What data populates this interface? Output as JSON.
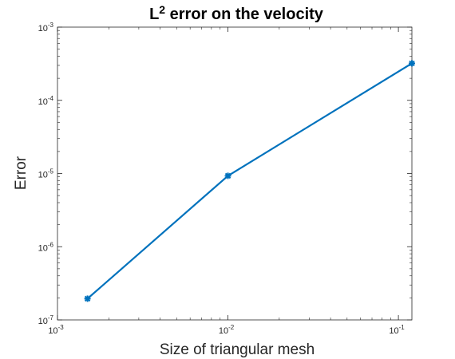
{
  "chart_data": {
    "type": "line",
    "title": "L",
    "title_superscript": "2",
    "title_rest": " error on the velocity",
    "xlabel": "Size of triangular mesh",
    "ylabel": "Error",
    "xscale": "log",
    "yscale": "log",
    "xlim": [
      0.001,
      0.12
    ],
    "ylim": [
      1e-07,
      0.001
    ],
    "grid": false,
    "box": true,
    "x_ticks": [
      {
        "value": 0.001,
        "base": "10",
        "exp": "-3"
      },
      {
        "value": 0.01,
        "base": "10",
        "exp": "-2"
      },
      {
        "value": 0.1,
        "base": "10",
        "exp": "-1"
      }
    ],
    "y_ticks": [
      {
        "value": 1e-07,
        "base": "10",
        "exp": "-7"
      },
      {
        "value": 1e-06,
        "base": "10",
        "exp": "-6"
      },
      {
        "value": 1e-05,
        "base": "10",
        "exp": "-5"
      },
      {
        "value": 0.0001,
        "base": "10",
        "exp": "-4"
      },
      {
        "value": 0.001,
        "base": "10",
        "exp": "-3"
      }
    ],
    "series": [
      {
        "color": "#0072bd",
        "marker": "asterisk",
        "x": [
          0.0015,
          0.01,
          0.12
        ],
        "y": [
          1.95e-07,
          9.3e-06,
          0.00032
        ]
      }
    ]
  }
}
